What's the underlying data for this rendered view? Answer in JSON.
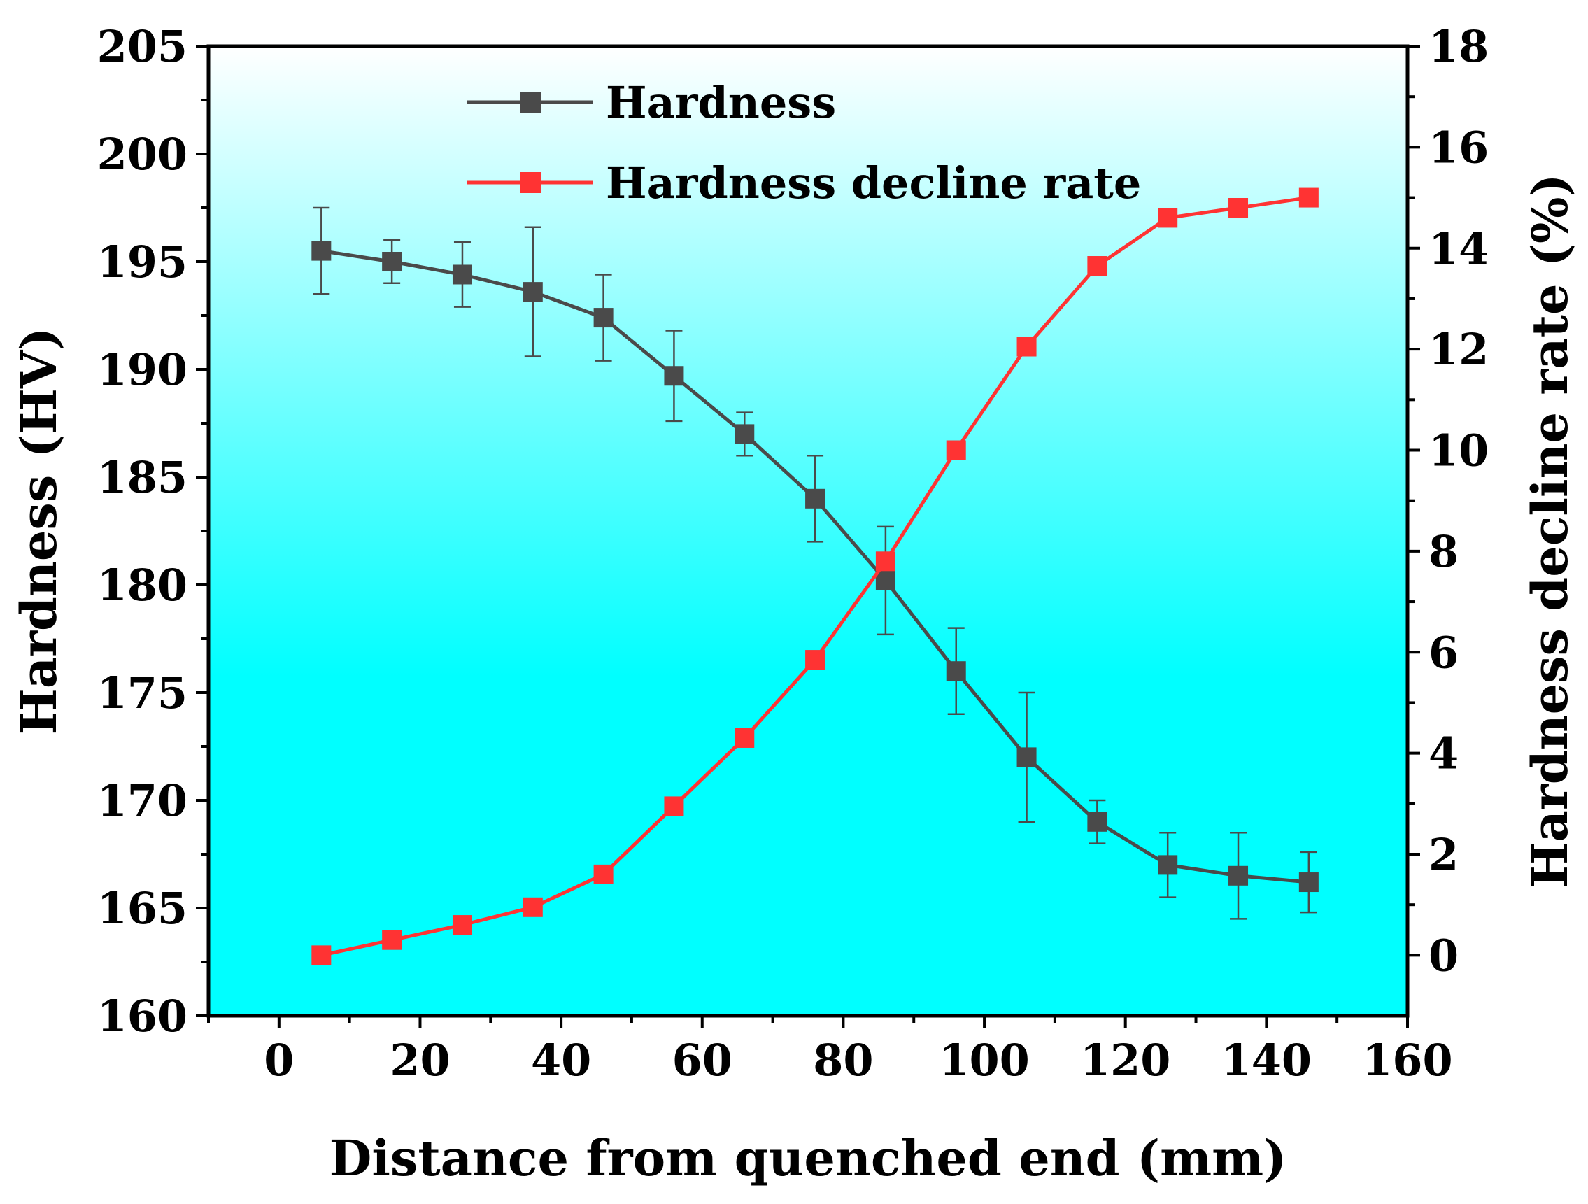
{
  "chart_data": {
    "type": "line",
    "xlabel": "Distance from quenched end (mm)",
    "ylabel_left": "Hardness (HV)",
    "ylabel_right": "Hardness decline rate (%)",
    "xlim": [
      -10,
      160
    ],
    "ylim_left": [
      160,
      205
    ],
    "ylim_right": [
      -1.2,
      18
    ],
    "x_ticks": [
      0,
      20,
      40,
      60,
      80,
      100,
      120,
      140,
      160
    ],
    "x_tick_labels": [
      "0",
      "20",
      "40",
      "60",
      "80",
      "100",
      "120",
      "140",
      "160"
    ],
    "y_left_ticks": [
      160,
      165,
      170,
      175,
      180,
      185,
      190,
      195,
      200,
      205
    ],
    "y_left_tick_labels": [
      "160",
      "165",
      "170",
      "175",
      "180",
      "185",
      "190",
      "195",
      "200",
      "205"
    ],
    "y_right_ticks": [
      0,
      2,
      4,
      6,
      8,
      10,
      12,
      14,
      16,
      18
    ],
    "y_right_tick_labels": [
      "0",
      "2",
      "4",
      "6",
      "8",
      "10",
      "12",
      "14",
      "16",
      "18"
    ],
    "x": [
      6,
      16,
      26,
      36,
      46,
      56,
      66,
      76,
      86,
      96,
      106,
      116,
      126,
      136,
      146
    ],
    "series": [
      {
        "name": "Hardness",
        "axis": "left",
        "color": "#4a4a4a",
        "values": [
          195.5,
          195.0,
          194.4,
          193.6,
          192.4,
          189.7,
          187.0,
          184.0,
          180.2,
          176.0,
          172.0,
          169.0,
          167.0,
          166.5,
          166.2
        ],
        "error": [
          2.0,
          1.0,
          1.5,
          3.0,
          2.0,
          2.1,
          1.0,
          2.0,
          2.5,
          2.0,
          3.0,
          1.0,
          1.5,
          2.0,
          1.4
        ]
      },
      {
        "name": "Hardness decline rate",
        "axis": "right",
        "color": "#ff3333",
        "values": [
          0.0,
          0.3,
          0.6,
          0.95,
          1.6,
          2.95,
          4.3,
          5.85,
          7.8,
          10.0,
          12.05,
          13.65,
          14.6,
          14.8,
          15.0
        ]
      }
    ],
    "legend": {
      "position": "top-center",
      "entries": [
        "Hardness",
        "Hardness decline rate"
      ]
    },
    "background": {
      "top_color": "#ffffff",
      "bottom_color": "#00ffff"
    }
  }
}
